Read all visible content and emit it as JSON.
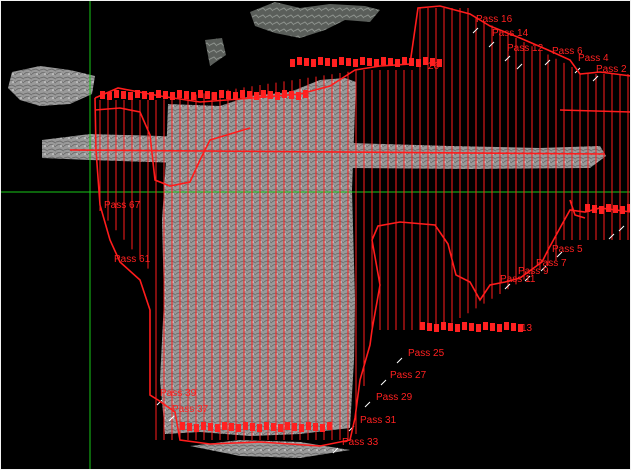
{
  "viewer": {
    "background": "#000000",
    "crosshair_color": "#18c818",
    "track_color": "#ff1c1c",
    "imagery_color": "#9a9a9a"
  },
  "pass_labels": {
    "p16": "Pass 16",
    "p14": "Pass 14",
    "p12": "Pass 12",
    "p6": "Pass 6",
    "p4": "Pass 4",
    "p2": "Pass 2",
    "p26": "26",
    "p67": "Pass 67",
    "p61": "Pass 61",
    "p5": "Pass 5",
    "p7": "Pass 7",
    "p9": "Pass 9",
    "p11": "Pass 11",
    "p13": "13",
    "p25": "Pass 25",
    "p27": "Pass 27",
    "p29": "Pass 29",
    "p31": "Pass 31",
    "p33": "Pass 33",
    "p39": "Pass 39",
    "p37": "Pass 37"
  }
}
